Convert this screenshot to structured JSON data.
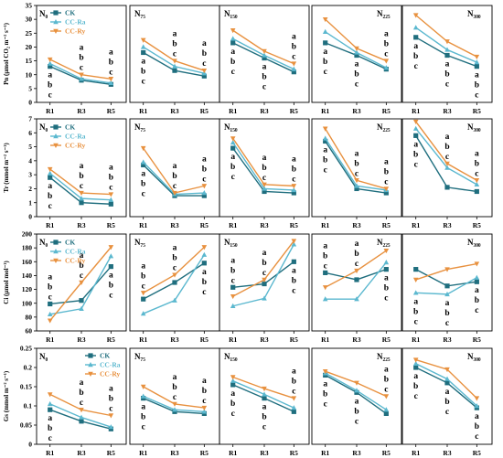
{
  "colors": {
    "CK": "#1f6e7e",
    "CC-Ra": "#5bb8cf",
    "CC-Ry": "#e8913f"
  },
  "legend": [
    {
      "key": "CK",
      "label": "CK"
    },
    {
      "key": "CC-Ra",
      "label": "CC-Ra"
    },
    {
      "key": "CC-Ry",
      "label": "CC-Ry"
    }
  ],
  "chart_data": [
    {
      "type": "line",
      "row": 0,
      "ylabel": "Pn (μmol CO₂ m⁻² s⁻¹)",
      "ylim": [
        0,
        35
      ],
      "yticks": [
        "0",
        "5",
        "10",
        "15",
        "20",
        "25",
        "30",
        "35"
      ],
      "categories": [
        "R1",
        "R3",
        "R5"
      ],
      "panels": [
        {
          "title": "N₀",
          "series": [
            {
              "name": "CK",
              "values": [
                13,
                8,
                6.5
              ]
            },
            {
              "name": "CC-Ra",
              "values": [
                14,
                8.5,
                7
              ]
            },
            {
              "name": "CC-Ry",
              "values": [
                15.5,
                10,
                8.5
              ]
            }
          ],
          "sig": [
            [
              "a",
              "b",
              "c"
            ],
            [
              "a",
              "b",
              "c"
            ],
            [
              "a",
              "b",
              "c"
            ]
          ]
        },
        {
          "title": "N₇₅",
          "series": [
            {
              "name": "CK",
              "values": [
                18,
                11.5,
                9.5
              ]
            },
            {
              "name": "CC-Ra",
              "values": [
                20,
                13,
                10.5
              ]
            },
            {
              "name": "CC-Ry",
              "values": [
                22.5,
                15,
                11.5
              ]
            }
          ],
          "sig": [
            [
              "a",
              "b",
              "c"
            ],
            [
              "a",
              "b",
              "c"
            ],
            [
              "a",
              "b",
              "c"
            ]
          ]
        },
        {
          "title": "N₁₅₀",
          "series": [
            {
              "name": "CK",
              "values": [
                21.5,
                16,
                11
              ]
            },
            {
              "name": "CC-Ra",
              "values": [
                23,
                17,
                12
              ]
            },
            {
              "name": "CC-Ry",
              "values": [
                26,
                18.5,
                14
              ]
            }
          ],
          "sig": [
            [
              "a",
              "b",
              "c"
            ],
            [
              "a",
              "b",
              "c"
            ],
            [
              "a",
              "b",
              "c"
            ]
          ]
        },
        {
          "title": "N₂₂₅",
          "series": [
            {
              "name": "CK",
              "values": [
                21.5,
                17,
                12
              ]
            },
            {
              "name": "CC-Ra",
              "values": [
                25.5,
                18,
                12.5
              ]
            },
            {
              "name": "CC-Ry",
              "values": [
                30,
                19.5,
                15
              ]
            }
          ],
          "sig": [
            [
              "a",
              "b",
              "c"
            ],
            [
              "a",
              "b",
              "c"
            ],
            [
              "a",
              "b",
              "c"
            ]
          ]
        },
        {
          "title": "N₃₀₀",
          "series": [
            {
              "name": "CK",
              "values": [
                23.5,
                17,
                13
              ]
            },
            {
              "name": "CC-Ra",
              "values": [
                27,
                19,
                14.5
              ]
            },
            {
              "name": "CC-Ry",
              "values": [
                31.5,
                22,
                16.5
              ]
            }
          ],
          "sig": [
            [
              "a",
              "b",
              "c"
            ],
            [
              "a",
              "b",
              "c"
            ],
            [
              "a",
              "b",
              "c"
            ]
          ]
        }
      ]
    },
    {
      "type": "line",
      "row": 1,
      "ylabel": "Tr (mmol m⁻² s⁻¹)",
      "ylim": [
        0,
        7
      ],
      "yticks": [
        "0",
        "1",
        "2",
        "3",
        "4",
        "5",
        "6",
        "7"
      ],
      "categories": [
        "R1",
        "R3",
        "R5"
      ],
      "panels": [
        {
          "title": "N₀",
          "series": [
            {
              "name": "CK",
              "values": [
                2.8,
                1.0,
                0.9
              ]
            },
            {
              "name": "CC-Ra",
              "values": [
                3.1,
                1.3,
                1.2
              ]
            },
            {
              "name": "CC-Ry",
              "values": [
                3.4,
                1.7,
                1.6
              ]
            }
          ],
          "sig": [
            [
              "a",
              "b",
              "c"
            ],
            [
              "a",
              "b",
              "c"
            ],
            [
              "a",
              "b",
              "c"
            ]
          ]
        },
        {
          "title": "N₇₅",
          "series": [
            {
              "name": "CK",
              "values": [
                3.7,
                1.5,
                1.5
              ]
            },
            {
              "name": "CC-Ra",
              "values": [
                3.9,
                1.6,
                1.7
              ]
            },
            {
              "name": "CC-Ry",
              "values": [
                4.9,
                1.7,
                2.2
              ]
            }
          ],
          "sig": [
            [
              "a",
              "b",
              "c"
            ],
            [
              "a",
              "b",
              "c"
            ],
            [
              "a",
              "b",
              "c"
            ]
          ]
        },
        {
          "title": "N₁₅₀",
          "series": [
            {
              "name": "CK",
              "values": [
                4.9,
                1.8,
                1.7
              ]
            },
            {
              "name": "CC-Ra",
              "values": [
                5.3,
                2.0,
                1.9
              ]
            },
            {
              "name": "CC-Ry",
              "values": [
                5.6,
                2.3,
                2.2
              ]
            }
          ],
          "sig": [
            [
              "a",
              "b",
              "c"
            ],
            [
              "a",
              "b",
              "c"
            ],
            [
              "a",
              "b",
              "c"
            ]
          ]
        },
        {
          "title": "N₂₂₅",
          "series": [
            {
              "name": "CK",
              "values": [
                5.4,
                2.0,
                1.7
              ]
            },
            {
              "name": "CC-Ra",
              "values": [
                5.6,
                2.2,
                1.9
              ]
            },
            {
              "name": "CC-Ry",
              "values": [
                6.3,
                2.6,
                2.0
              ]
            }
          ],
          "sig": [
            [
              "a",
              "b",
              "c"
            ],
            [
              "a",
              "b",
              "c"
            ],
            [
              "a",
              "b",
              "c"
            ]
          ]
        },
        {
          "title": "N₃₀₀",
          "series": [
            {
              "name": "CK",
              "values": [
                5.8,
                2.1,
                1.8
              ]
            },
            {
              "name": "CC-Ra",
              "values": [
                6.3,
                3.5,
                2.3
              ]
            },
            {
              "name": "CC-Ry",
              "values": [
                6.8,
                3.8,
                2.6
              ]
            }
          ],
          "sig": [
            [
              "a",
              "b",
              "c"
            ],
            [
              "a",
              "b",
              "c"
            ],
            [
              "a",
              "b",
              "c"
            ]
          ]
        }
      ]
    },
    {
      "type": "line",
      "row": 2,
      "ylabel": "Ci (μmol mol⁻¹)",
      "ylim": [
        60,
        200
      ],
      "yticks": [
        "60",
        "80",
        "100",
        "120",
        "140",
        "160",
        "180",
        "200"
      ],
      "categories": [
        "R1",
        "R3",
        "R5"
      ],
      "panels": [
        {
          "title": "N₀",
          "series": [
            {
              "name": "CK",
              "values": [
                99,
                104,
                153
              ]
            },
            {
              "name": "CC-Ra",
              "values": [
                84,
                92,
                168
              ]
            },
            {
              "name": "CC-Ry",
              "values": [
                75,
                130,
                181
              ]
            }
          ],
          "sig": [
            [
              "a",
              "b",
              "c"
            ],
            [
              "a",
              "b",
              "c"
            ],
            [
              "a",
              "b",
              "c"
            ]
          ]
        },
        {
          "title": "N₇₅",
          "series": [
            {
              "name": "CK",
              "values": [
                106,
                130,
                158
              ]
            },
            {
              "name": "CC-Ra",
              "values": [
                85,
                104,
                170
              ]
            },
            {
              "name": "CC-Ry",
              "values": [
                115,
                141,
                181
              ]
            }
          ],
          "sig": [
            [
              "a",
              "b",
              "c"
            ],
            [
              "a",
              "b",
              "c"
            ],
            [
              "a",
              "b",
              "c"
            ]
          ]
        },
        {
          "title": "N₁₅₀",
          "series": [
            {
              "name": "CK",
              "values": [
                123,
                128,
                160
              ]
            },
            {
              "name": "CC-Ra",
              "values": [
                96,
                107,
                185
              ]
            },
            {
              "name": "CC-Ry",
              "values": [
                110,
                134,
                190
              ]
            }
          ],
          "sig": [
            [
              "a",
              "b",
              "c"
            ],
            [
              "a",
              "b",
              "c"
            ],
            [
              "a",
              "b",
              "c"
            ]
          ]
        },
        {
          "title": "N₂₂₅",
          "series": [
            {
              "name": "CK",
              "values": [
                144,
                134,
                149
              ]
            },
            {
              "name": "CC-Ra",
              "values": [
                106,
                106,
                159
              ]
            },
            {
              "name": "CC-Ry",
              "values": [
                123,
                147,
                176
              ]
            }
          ],
          "sig": [
            [
              "a",
              "b",
              "c"
            ],
            [
              "a",
              "b",
              "c"
            ],
            [
              "a",
              "b",
              "c"
            ]
          ]
        },
        {
          "title": "N₃₀₀",
          "series": [
            {
              "name": "CK",
              "values": [
                149,
                125,
                131
              ]
            },
            {
              "name": "CC-Ra",
              "values": [
                115,
                113,
                137
              ]
            },
            {
              "name": "CC-Ry",
              "values": [
                134,
                149,
                157
              ]
            }
          ],
          "sig": [
            [
              "a",
              "b",
              "c"
            ],
            [
              "a",
              "b",
              "c"
            ],
            [
              "a",
              "b",
              "c"
            ]
          ]
        }
      ]
    },
    {
      "type": "line",
      "row": 3,
      "ylabel": "Gs (mmol m⁻² s⁻¹)",
      "ylim": [
        0,
        0.25
      ],
      "yticks": [
        "0",
        "0.05",
        "0.1",
        "0.15",
        "0.2",
        "0.25"
      ],
      "categories": [
        "R1",
        "R3",
        "R5"
      ],
      "panels": [
        {
          "title": "N₀",
          "series": [
            {
              "name": "CK",
              "values": [
                0.09,
                0.06,
                0.04
              ]
            },
            {
              "name": "CC-Ra",
              "values": [
                0.105,
                0.07,
                0.045
              ]
            },
            {
              "name": "CC-Ry",
              "values": [
                0.13,
                0.09,
                0.075
              ]
            }
          ],
          "sig": [
            [
              "a",
              "b",
              "c"
            ],
            [
              "a",
              "b",
              "c"
            ],
            [
              "a",
              "b",
              "c"
            ]
          ]
        },
        {
          "title": "N₇₅",
          "series": [
            {
              "name": "CK",
              "values": [
                0.12,
                0.085,
                0.08
              ]
            },
            {
              "name": "CC-Ra",
              "values": [
                0.125,
                0.09,
                0.085
              ]
            },
            {
              "name": "CC-Ry",
              "values": [
                0.15,
                0.105,
                0.095
              ]
            }
          ],
          "sig": [
            [
              "a",
              "b",
              "c"
            ],
            [
              "a",
              "b",
              "c"
            ],
            [
              "a",
              "b",
              "c"
            ]
          ]
        },
        {
          "title": "N₁₅₀",
          "series": [
            {
              "name": "CK",
              "values": [
                0.155,
                0.12,
                0.085
              ]
            },
            {
              "name": "CC-Ra",
              "values": [
                0.165,
                0.13,
                0.095
              ]
            },
            {
              "name": "CC-Ry",
              "values": [
                0.175,
                0.145,
                0.12
              ]
            }
          ],
          "sig": [
            [
              "a",
              "b",
              "c"
            ],
            [
              "a",
              "b",
              "c"
            ],
            [
              "a",
              "b",
              "c"
            ]
          ]
        },
        {
          "title": "N₂₂₅",
          "series": [
            {
              "name": "CK",
              "values": [
                0.18,
                0.135,
                0.08
              ]
            },
            {
              "name": "CC-Ra",
              "values": [
                0.185,
                0.14,
                0.09
              ]
            },
            {
              "name": "CC-Ry",
              "values": [
                0.19,
                0.16,
                0.125
              ]
            }
          ],
          "sig": [
            [
              "a",
              "b",
              "c"
            ],
            [
              "a",
              "b",
              "c"
            ],
            [
              "a",
              "b",
              "c"
            ]
          ]
        },
        {
          "title": "N₃₀₀",
          "series": [
            {
              "name": "CK",
              "values": [
                0.2,
                0.16,
                0.095
              ]
            },
            {
              "name": "CC-Ra",
              "values": [
                0.21,
                0.17,
                0.1
              ]
            },
            {
              "name": "CC-Ry",
              "values": [
                0.22,
                0.195,
                0.12
              ]
            }
          ],
          "sig": [
            [
              "a",
              "b",
              "c"
            ],
            [
              "a",
              "b",
              "c"
            ],
            [
              "a",
              "b",
              "c"
            ]
          ]
        }
      ]
    }
  ]
}
